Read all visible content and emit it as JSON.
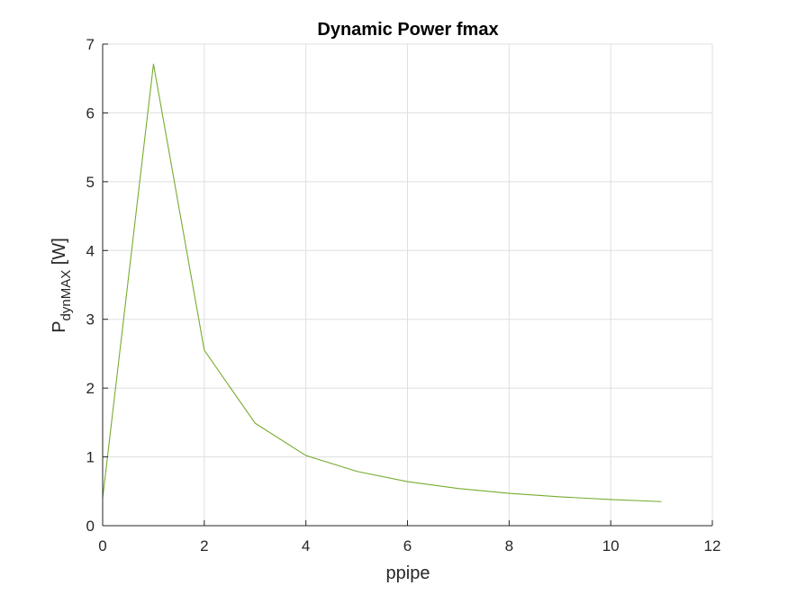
{
  "chart_data": {
    "type": "line",
    "title": "Dynamic Power fmax",
    "xlabel": "ppipe",
    "ylabel": {
      "main": "P",
      "subscript": "dynMAX",
      "suffix": " [W]"
    },
    "xlim": [
      0,
      12
    ],
    "ylim": [
      0,
      7
    ],
    "xticks": [
      0,
      2,
      4,
      6,
      8,
      10,
      12
    ],
    "yticks": [
      0,
      1,
      2,
      3,
      4,
      5,
      6,
      7
    ],
    "grid": true,
    "series": [
      {
        "color": "#77ac30",
        "x": [
          0,
          1,
          2,
          3,
          4,
          5,
          6,
          7,
          8,
          9,
          10,
          11
        ],
        "y": [
          0.4,
          6.71,
          2.55,
          1.49,
          1.02,
          0.79,
          0.64,
          0.54,
          0.47,
          0.42,
          0.38,
          0.35
        ]
      }
    ]
  }
}
